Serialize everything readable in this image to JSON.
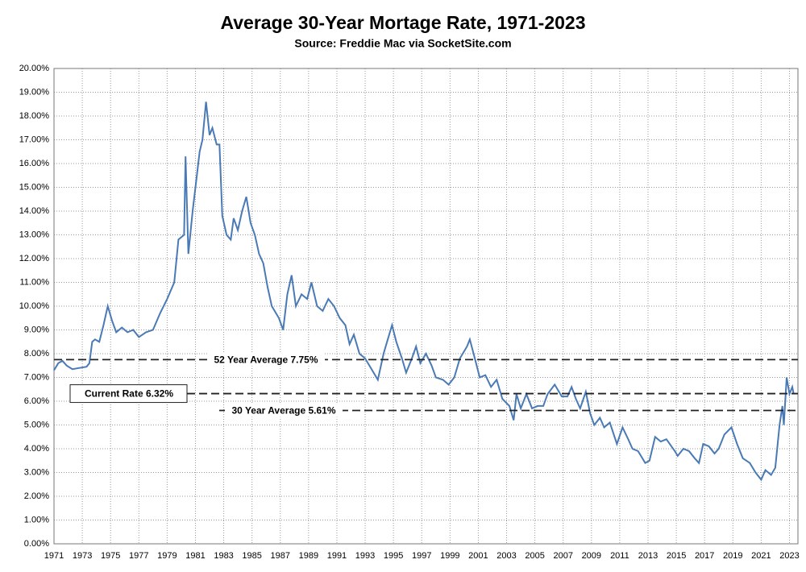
{
  "chart_data": {
    "type": "line",
    "title": "Average 30-Year Mortage Rate, 1971-2023",
    "subtitle": "Source: Freddie Mac via SocketSite.com",
    "color": "#4a7ab5",
    "grid": true,
    "x": [
      1971.0,
      1971.3,
      1971.6,
      1971.9,
      1972.3,
      1972.8,
      1973.3,
      1973.5,
      1973.7,
      1973.9,
      1974.2,
      1974.5,
      1974.8,
      1975.1,
      1975.4,
      1975.8,
      1976.2,
      1976.6,
      1977.0,
      1977.5,
      1978.0,
      1978.5,
      1979.0,
      1979.5,
      1979.8,
      1980.2,
      1980.3,
      1980.5,
      1980.8,
      1981.0,
      1981.3,
      1981.5,
      1981.75,
      1982.0,
      1982.2,
      1982.5,
      1982.7,
      1982.9,
      1983.2,
      1983.5,
      1983.7,
      1984.0,
      1984.3,
      1984.6,
      1984.9,
      1985.2,
      1985.5,
      1985.8,
      1986.1,
      1986.4,
      1986.9,
      1987.2,
      1987.5,
      1987.8,
      1988.1,
      1988.5,
      1988.9,
      1989.2,
      1989.6,
      1990.0,
      1990.4,
      1990.8,
      1991.2,
      1991.6,
      1991.9,
      1992.2,
      1992.6,
      1993.0,
      1993.5,
      1993.9,
      1994.3,
      1994.6,
      1994.9,
      1995.2,
      1995.6,
      1995.9,
      1996.3,
      1996.6,
      1996.9,
      1997.3,
      1997.7,
      1998.0,
      1998.5,
      1998.9,
      1999.3,
      1999.7,
      2000.2,
      2000.4,
      2000.8,
      2001.1,
      2001.5,
      2001.9,
      2002.3,
      2002.7,
      2003.2,
      2003.5,
      2003.7,
      2004.0,
      2004.4,
      2004.8,
      2005.2,
      2005.6,
      2005.9,
      2006.4,
      2006.9,
      2007.3,
      2007.6,
      2007.9,
      2008.2,
      2008.6,
      2008.9,
      2009.2,
      2009.6,
      2009.9,
      2010.3,
      2010.8,
      2011.2,
      2011.6,
      2011.9,
      2012.3,
      2012.8,
      2013.1,
      2013.5,
      2013.9,
      2014.3,
      2014.9,
      2015.1,
      2015.5,
      2015.9,
      2016.3,
      2016.6,
      2016.9,
      2017.3,
      2017.7,
      2018.0,
      2018.4,
      2018.9,
      2019.3,
      2019.7,
      2020.2,
      2020.6,
      2021.0,
      2021.3,
      2021.7,
      2022.0,
      2022.3,
      2022.5,
      2022.6,
      2022.8,
      2023.0,
      2023.2,
      2023.3
    ],
    "values": [
      7.3,
      7.6,
      7.7,
      7.5,
      7.35,
      7.4,
      7.45,
      7.6,
      8.5,
      8.6,
      8.5,
      9.2,
      10.0,
      9.4,
      8.9,
      9.1,
      8.9,
      9.0,
      8.7,
      8.9,
      9.0,
      9.7,
      10.3,
      11.0,
      12.8,
      13.0,
      16.3,
      12.2,
      14.0,
      15.0,
      16.5,
      17.0,
      18.6,
      17.2,
      17.5,
      16.8,
      16.8,
      13.8,
      13.0,
      12.8,
      13.7,
      13.2,
      14.0,
      14.6,
      13.5,
      13.0,
      12.2,
      11.8,
      10.8,
      10.0,
      9.5,
      9.0,
      10.5,
      11.3,
      10.0,
      10.5,
      10.3,
      11.0,
      10.0,
      9.8,
      10.3,
      10.0,
      9.5,
      9.2,
      8.4,
      8.8,
      8.0,
      7.8,
      7.3,
      6.9,
      8.0,
      8.6,
      9.2,
      8.5,
      7.8,
      7.2,
      7.8,
      8.3,
      7.6,
      8.0,
      7.5,
      7.0,
      6.9,
      6.7,
      7.0,
      7.8,
      8.3,
      8.6,
      7.7,
      7.0,
      7.1,
      6.6,
      6.9,
      6.1,
      5.8,
      5.2,
      6.3,
      5.7,
      6.3,
      5.7,
      5.8,
      5.8,
      6.3,
      6.7,
      6.2,
      6.2,
      6.6,
      6.1,
      5.7,
      6.4,
      5.5,
      5.0,
      5.3,
      4.9,
      5.1,
      4.2,
      4.9,
      4.4,
      4.0,
      3.9,
      3.4,
      3.5,
      4.5,
      4.3,
      4.4,
      3.9,
      3.7,
      4.0,
      3.9,
      3.6,
      3.4,
      4.2,
      4.1,
      3.8,
      4.0,
      4.6,
      4.9,
      4.2,
      3.6,
      3.4,
      3.0,
      2.7,
      3.1,
      2.9,
      3.2,
      5.0,
      5.8,
      5.0,
      7.0,
      6.3,
      6.6,
      6.3
    ],
    "xlim": [
      1971,
      2023.6
    ],
    "xticks": [
      1971,
      1973,
      1975,
      1977,
      1979,
      1981,
      1983,
      1985,
      1987,
      1989,
      1991,
      1993,
      1995,
      1997,
      1999,
      2001,
      2003,
      2005,
      2007,
      2009,
      2011,
      2013,
      2015,
      2017,
      2019,
      2021,
      2023
    ],
    "ylim": [
      0,
      20
    ],
    "yticks": [
      {
        "value": 0,
        "label": "0.00%"
      },
      {
        "value": 1,
        "label": "1.00%"
      },
      {
        "value": 2,
        "label": "2.00%"
      },
      {
        "value": 3,
        "label": "3.00%"
      },
      {
        "value": 4,
        "label": "4.00%"
      },
      {
        "value": 5,
        "label": "5.00%"
      },
      {
        "value": 6,
        "label": "6.00%"
      },
      {
        "value": 7,
        "label": "7.00%"
      },
      {
        "value": 8,
        "label": "8.00%"
      },
      {
        "value": 9,
        "label": "9.00%"
      },
      {
        "value": 10,
        "label": "10.00%"
      },
      {
        "value": 11,
        "label": "11.00%"
      },
      {
        "value": 12,
        "label": "12.00%"
      },
      {
        "value": 13,
        "label": "13.00%"
      },
      {
        "value": 14,
        "label": "14.00%"
      },
      {
        "value": 15,
        "label": "15.00%"
      },
      {
        "value": 16,
        "label": "16.00%"
      },
      {
        "value": 17,
        "label": "17.00%"
      },
      {
        "value": 18,
        "label": "18.00%"
      },
      {
        "value": 19,
        "label": "19.00%"
      },
      {
        "value": 20,
        "label": "20.00%"
      }
    ],
    "reference_lines": [
      {
        "label": "52 Year Average 7.75%",
        "value": 7.75
      },
      {
        "label": "Current Rate 6.32%",
        "value": 6.32
      },
      {
        "label": "30 Year Average 5.61%",
        "value": 5.61
      }
    ]
  }
}
